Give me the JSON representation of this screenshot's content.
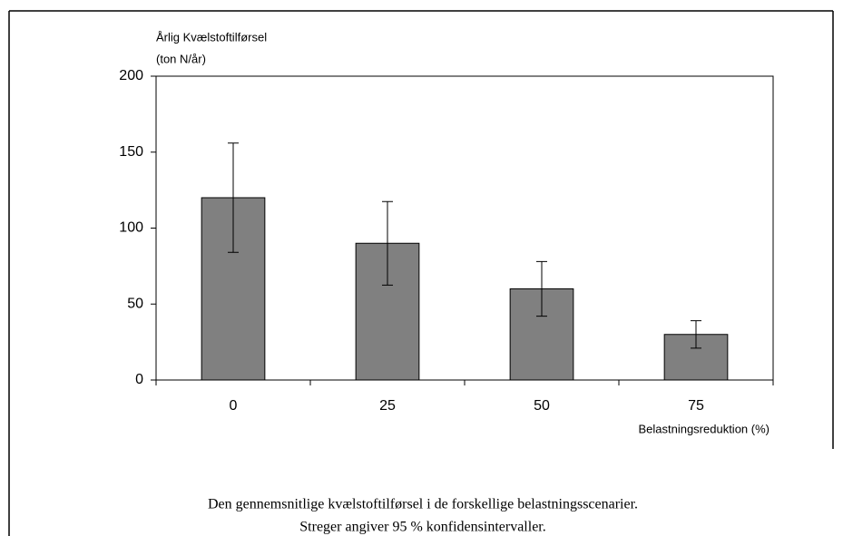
{
  "chart_data": {
    "type": "bar",
    "y_axis_title": [
      "Årlig Kvælstoftilførsel",
      "(ton N/år)"
    ],
    "x_axis_title": "Belastningsreduktion (%)",
    "caption": [
      "Den gennemsnitlige kvælstoftilførsel i de forskellige belastningsscenarier.",
      "Streger angiver 95 % konfidensintervaller."
    ],
    "categories": [
      "0",
      "25",
      "50",
      "75"
    ],
    "values": [
      120,
      90,
      60,
      30
    ],
    "errors": [
      36,
      27.5,
      18,
      9
    ],
    "color": "#808080",
    "ylim": [
      0,
      200
    ],
    "yticks": [
      0,
      50,
      100,
      150,
      200
    ],
    "grid": false
  }
}
